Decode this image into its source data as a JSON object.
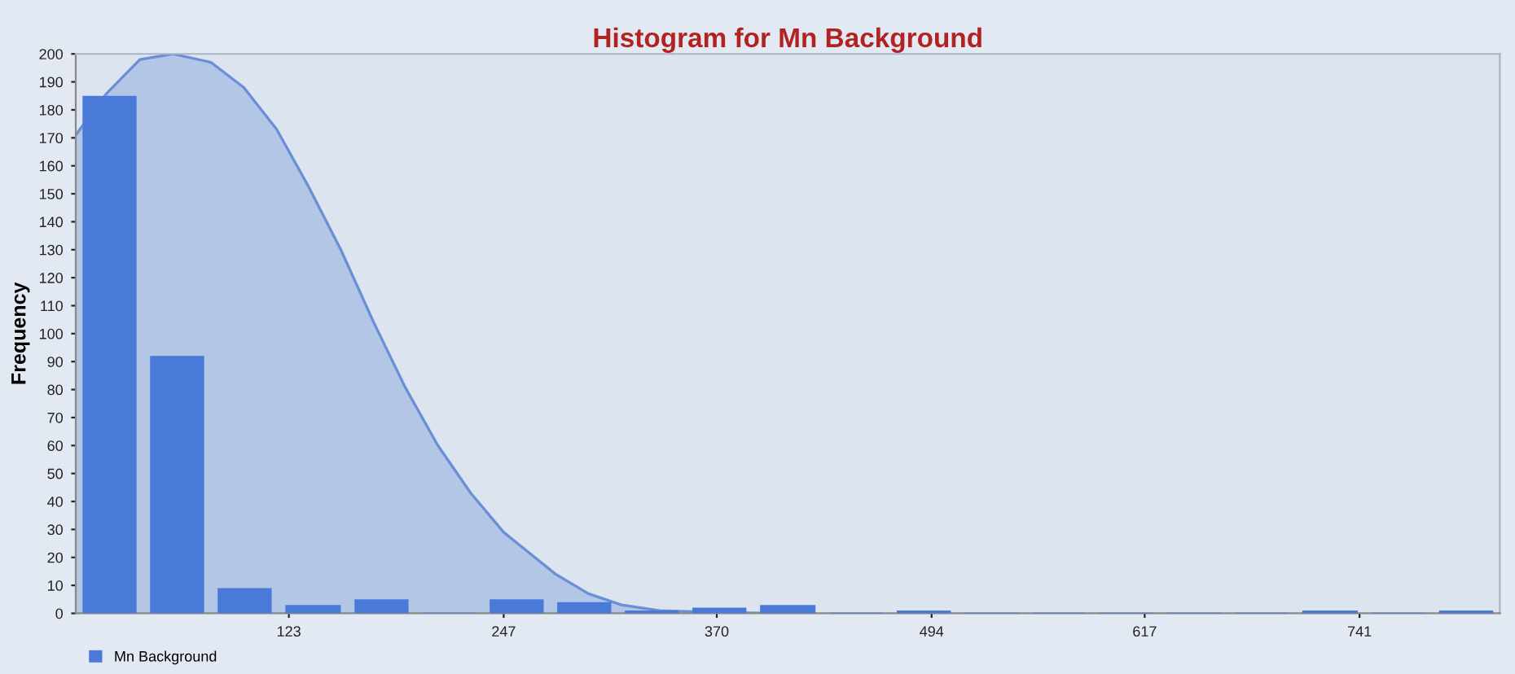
{
  "chart_data": {
    "type": "histogram",
    "title": "Histogram for Mn Background",
    "ylabel": "Frequency",
    "bins": [
      0,
      39,
      78,
      117,
      157,
      196,
      235,
      274,
      313,
      352,
      391,
      431,
      470,
      509,
      548,
      587,
      626,
      665,
      704,
      744,
      783,
      822
    ],
    "series": [
      {
        "name": "Mn Background",
        "color": "#4a7ad8",
        "values": [
          185,
          92,
          9,
          3,
          5,
          0,
          5,
          4,
          1,
          2,
          3,
          0,
          1,
          0,
          0,
          0,
          0,
          0,
          1,
          0,
          1
        ]
      },
      {
        "type": "area",
        "color": "#6b8fd6",
        "x": [
          0,
          18,
          37,
          56,
          78,
          97,
          116,
          134,
          153,
          172,
          190,
          209,
          228,
          247,
          259,
          277,
          296,
          315,
          337,
          360,
          400
        ],
        "values": [
          171,
          186,
          198,
          200,
          197,
          188,
          173,
          153,
          130,
          104,
          81,
          60,
          43,
          29,
          23,
          14,
          7,
          3,
          1,
          0.5,
          0
        ]
      }
    ],
    "xlim": [
      0,
      822
    ],
    "xticks": [
      123,
      247,
      370,
      494,
      617,
      741
    ],
    "ylim": [
      0,
      200
    ],
    "yticks": [
      0,
      10,
      20,
      30,
      40,
      50,
      60,
      70,
      80,
      90,
      100,
      110,
      120,
      130,
      140,
      150,
      160,
      170,
      180,
      190,
      200
    ],
    "grid": false,
    "legend": "bottom left"
  }
}
